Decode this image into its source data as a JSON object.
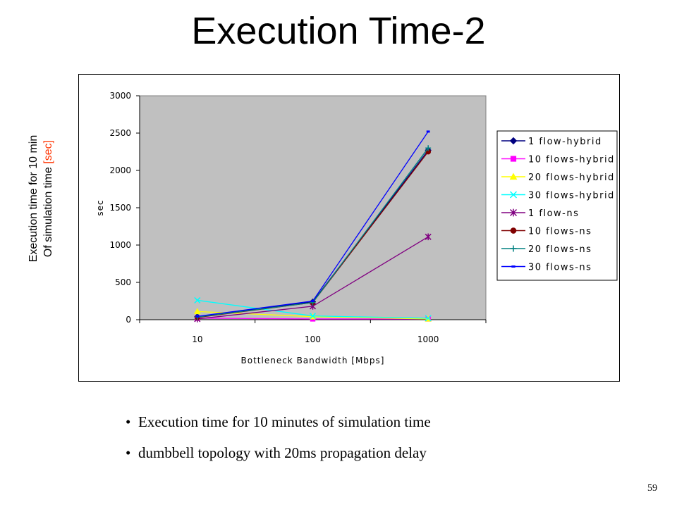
{
  "slide": {
    "title": "Execution Time-2",
    "side_label_line1": "Execution time for 10 min",
    "side_label_line2": "Of simulation time ",
    "side_label_unit": "[sec]",
    "bullets": [
      "Execution time for 10 minutes of simulation time",
      "dumbbell topology with 20ms propagation delay"
    ],
    "bullet_glyph": "•",
    "page_number": "59"
  },
  "chart_data": {
    "type": "line",
    "title": "",
    "xlabel": "Bottleneck Bandwidth [Mbps]",
    "ylabel": "sec",
    "categories": [
      "10",
      "100",
      "1000"
    ],
    "yticks": [
      "0",
      "500",
      "1000",
      "1500",
      "2000",
      "2500",
      "3000"
    ],
    "ylim": [
      0,
      3000
    ],
    "grid": false,
    "plot_background": "#c0c0c0",
    "legend_position": "right",
    "series": [
      {
        "name": "1 flow-hybrid",
        "values": [
          40,
          240,
          2270
        ],
        "color": "#000080",
        "marker": "diamond"
      },
      {
        "name": "10 flows-hybrid",
        "values": [
          20,
          10,
          10
        ],
        "color": "#ff00ff",
        "marker": "square"
      },
      {
        "name": "20 flows-hybrid",
        "values": [
          110,
          40,
          10
        ],
        "color": "#ffff00",
        "marker": "triangle"
      },
      {
        "name": "30 flows-hybrid",
        "values": [
          260,
          50,
          20
        ],
        "color": "#00ffff",
        "marker": "x"
      },
      {
        "name": "1 flow-ns",
        "values": [
          10,
          180,
          1110
        ],
        "color": "#800080",
        "marker": "star"
      },
      {
        "name": "10 flows-ns",
        "values": [
          30,
          230,
          2250
        ],
        "color": "#800000",
        "marker": "circle"
      },
      {
        "name": "20 flows-ns",
        "values": [
          35,
          230,
          2300
        ],
        "color": "#008080",
        "marker": "plus"
      },
      {
        "name": "30 flows-ns",
        "values": [
          45,
          250,
          2520
        ],
        "color": "#0000ff",
        "marker": "dash"
      }
    ]
  }
}
